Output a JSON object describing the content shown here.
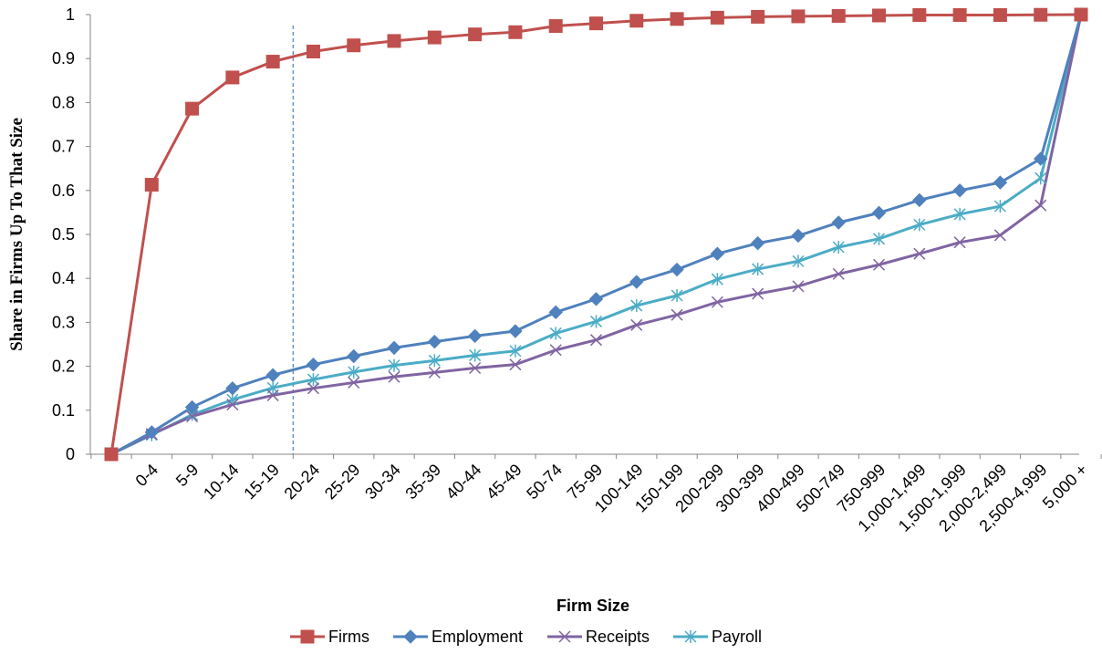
{
  "chart_data": {
    "type": "line",
    "title": "",
    "xlabel": "Firm Size",
    "ylabel": "Share in Firms Up To That Size",
    "ylim": [
      0,
      1
    ],
    "yticks": [
      "0",
      "0.1",
      "0.2",
      "0.3",
      "0.4",
      "0.5",
      "0.6",
      "0.7",
      "0.8",
      "0.9",
      "1"
    ],
    "categories": [
      "",
      "0-4",
      "5-9",
      "10-14",
      "15-19",
      "20-24",
      "25-29",
      "30-34",
      "35-39",
      "40-44",
      "45-49",
      "50-74",
      "75-99",
      "100-149",
      "150-199",
      "200-299",
      "300-399",
      "400-499",
      "500-749",
      "750-999",
      "1,000-1,499",
      "1,500-1,999",
      "2,000-2,499",
      "2,500-4,999",
      "5,000 +"
    ],
    "reference_line_between": [
      "15-19",
      "20-24"
    ],
    "grid": false,
    "legend_position": "bottom",
    "series": [
      {
        "name": "Firms",
        "color": "#C0504D",
        "marker": "square",
        "values": [
          0,
          0.613,
          0.786,
          0.857,
          0.893,
          0.916,
          0.93,
          0.94,
          0.948,
          0.955,
          0.96,
          0.974,
          0.98,
          0.986,
          0.99,
          0.993,
          0.995,
          0.996,
          0.997,
          0.998,
          0.999,
          0.999,
          0.999,
          0.9995,
          1.0
        ]
      },
      {
        "name": "Employment",
        "color": "#4F81BD",
        "marker": "diamond",
        "values": [
          0,
          0.05,
          0.107,
          0.15,
          0.18,
          0.204,
          0.223,
          0.242,
          0.256,
          0.269,
          0.28,
          0.323,
          0.353,
          0.392,
          0.42,
          0.456,
          0.48,
          0.497,
          0.527,
          0.549,
          0.578,
          0.6,
          0.618,
          0.672,
          1.0
        ]
      },
      {
        "name": "Receipts",
        "color": "#8064A2",
        "marker": "x",
        "values": [
          0,
          0.046,
          0.086,
          0.113,
          0.134,
          0.15,
          0.163,
          0.176,
          0.186,
          0.196,
          0.204,
          0.237,
          0.26,
          0.294,
          0.317,
          0.346,
          0.365,
          0.382,
          0.41,
          0.431,
          0.456,
          0.482,
          0.498,
          0.566,
          1.0
        ]
      },
      {
        "name": "Payroll",
        "color": "#4BACC6",
        "marker": "asterisk",
        "values": [
          0,
          0.044,
          0.09,
          0.124,
          0.151,
          0.17,
          0.187,
          0.202,
          0.213,
          0.225,
          0.235,
          0.275,
          0.302,
          0.338,
          0.361,
          0.398,
          0.421,
          0.439,
          0.471,
          0.49,
          0.522,
          0.546,
          0.564,
          0.628,
          1.0
        ]
      }
    ]
  }
}
